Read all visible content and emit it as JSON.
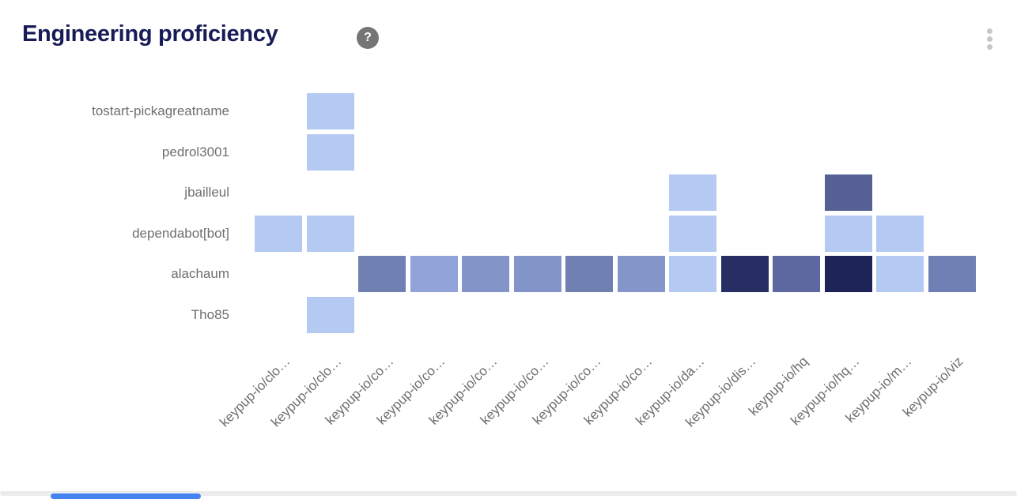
{
  "header": {
    "title": "Engineering proficiency",
    "help_glyph": "?"
  },
  "colors": {
    "title_text": "#181c56",
    "axis_label_text": "#6e6e6e",
    "help_icon_bg": "#757575",
    "kebab_dots": "#c7c7c7",
    "scrollbar_track": "#ececec",
    "scrollbar_thumb": "#4484f3",
    "cell_light": "#b5caf2",
    "cell_darkest": "#1e2458"
  },
  "chart_data": {
    "type": "heatmap",
    "title": "Engineering proficiency",
    "xlabel": "",
    "ylabel": "",
    "legend": "none",
    "grid": "off",
    "rows": [
      "tostart-pickagreatname",
      "pedrol3001",
      "jbailleul",
      "dependabot[bot]",
      "alachaum",
      "Tho85"
    ],
    "columns": [
      "keypup-io/clo…",
      "keypup-io/clo…",
      "keypup-io/co…",
      "keypup-io/co…",
      "keypup-io/co…",
      "keypup-io/co…",
      "keypup-io/co…",
      "keypup-io/co…",
      "keypup-io/da…",
      "keypup-io/dis…",
      "keypup-io/hq",
      "keypup-io/hq…",
      "keypup-io/m…",
      "keypup-io/viz"
    ],
    "cell_colors": [
      [
        null,
        "#b5caf2",
        null,
        null,
        null,
        null,
        null,
        null,
        null,
        null,
        null,
        null,
        null,
        null
      ],
      [
        null,
        "#b5caf2",
        null,
        null,
        null,
        null,
        null,
        null,
        null,
        null,
        null,
        null,
        null,
        null
      ],
      [
        null,
        null,
        null,
        null,
        null,
        null,
        null,
        null,
        "#b5caf2",
        null,
        null,
        "#566094",
        null,
        null
      ],
      [
        "#b5caf2",
        "#b5caf2",
        null,
        null,
        null,
        null,
        null,
        null,
        "#b5caf2",
        null,
        null,
        "#b5caf2",
        "#b5caf2",
        null
      ],
      [
        null,
        null,
        "#7080b2",
        "#91a3d8",
        "#8394c9",
        "#8394c9",
        "#7080b2",
        "#8495c9",
        "#b5caf2",
        "#272e63",
        "#5d68a0",
        "#1e2458",
        "#b5caf2",
        "#7080b5"
      ],
      [
        null,
        "#b5caf2",
        null,
        null,
        null,
        null,
        null,
        null,
        null,
        null,
        null,
        null,
        null,
        null
      ]
    ]
  }
}
